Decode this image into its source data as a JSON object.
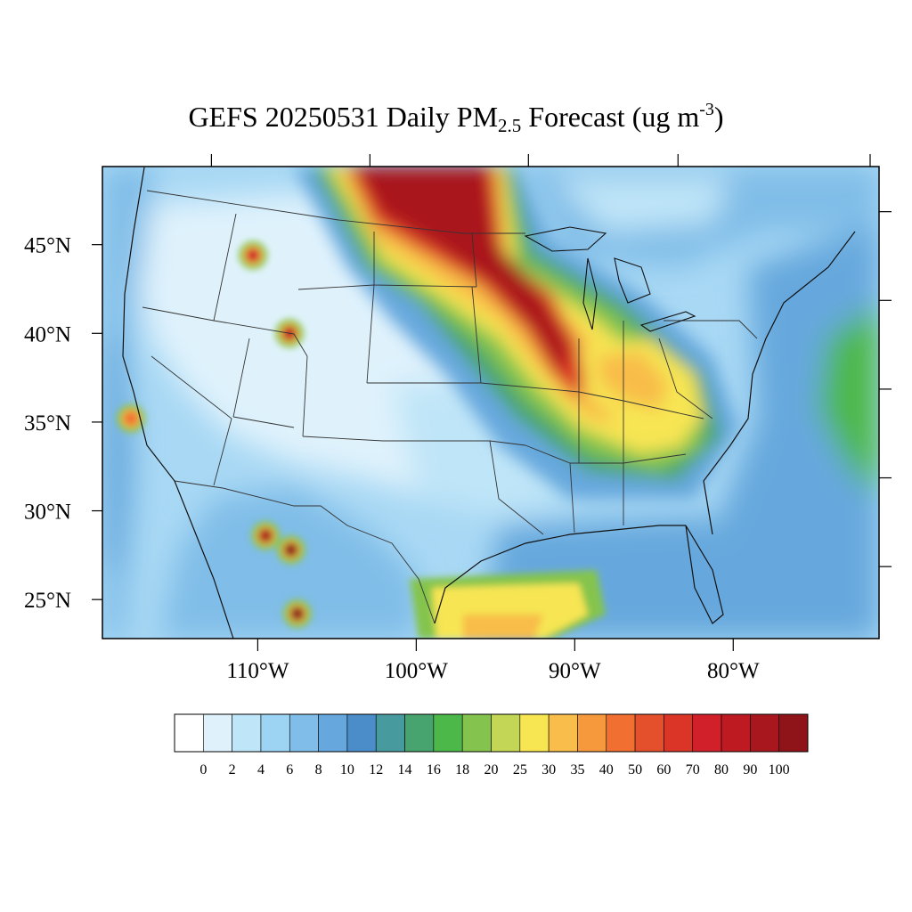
{
  "title": {
    "prefix": "GEFS 20250531 Daily PM",
    "subscript": "2.5",
    "middle": " Forecast (ug m",
    "superscript": "-3",
    "suffix": ")"
  },
  "map": {
    "extent": {
      "lon_min": -119.8,
      "lon_max": -70.8,
      "lat_min": 22.8,
      "lat_max": 49.4
    },
    "lat_labels": [
      "45°N",
      "40°N",
      "35°N",
      "30°N",
      "25°N"
    ],
    "lat_values": [
      45,
      40,
      35,
      30,
      25
    ],
    "lon_labels": [
      "110°W",
      "100°W",
      "90°W",
      "80°W"
    ],
    "lon_values": [
      -110,
      -100,
      -90,
      -80
    ],
    "background_color": "#a8d8f4",
    "plumes": [
      {
        "lon": -102.5,
        "lat": 47.3,
        "level": 100
      },
      {
        "lon": -96.5,
        "lat": 44.5,
        "level": 90
      },
      {
        "lon": -92.5,
        "lat": 41.0,
        "level": 40
      },
      {
        "lon": -87.5,
        "lat": 38.0,
        "level": 35
      },
      {
        "lon": -84.0,
        "lat": 35.0,
        "level": 30
      },
      {
        "lon": -94.0,
        "lat": 25.0,
        "level": 30
      },
      {
        "lon": -107.5,
        "lat": 24.2,
        "level": 100
      },
      {
        "lon": -107.9,
        "lat": 27.8,
        "level": 100
      },
      {
        "lon": -109.5,
        "lat": 28.6,
        "level": 90
      },
      {
        "lon": -108.0,
        "lat": 40.0,
        "level": 80
      },
      {
        "lon": -110.3,
        "lat": 44.4,
        "level": 70
      },
      {
        "lon": -118.0,
        "lat": 35.2,
        "level": 40
      }
    ]
  },
  "colorbar": {
    "colors": [
      "#ffffff",
      "#dff2fc",
      "#bfe5f8",
      "#9dd4f3",
      "#80bde8",
      "#66a8dd",
      "#4a8dc8",
      "#479b9e",
      "#48a46e",
      "#4db84a",
      "#84c44e",
      "#c3d656",
      "#f7e552",
      "#f8bd4a",
      "#f6993c",
      "#f16f30",
      "#e5502c",
      "#db3528",
      "#d1202a",
      "#bd1a22",
      "#a9171e",
      "#8e141a"
    ],
    "labels": [
      "0",
      "2",
      "4",
      "6",
      "8",
      "10",
      "12",
      "14",
      "16",
      "18",
      "20",
      "25",
      "30",
      "35",
      "40",
      "50",
      "60",
      "70",
      "80",
      "90",
      "100"
    ]
  }
}
